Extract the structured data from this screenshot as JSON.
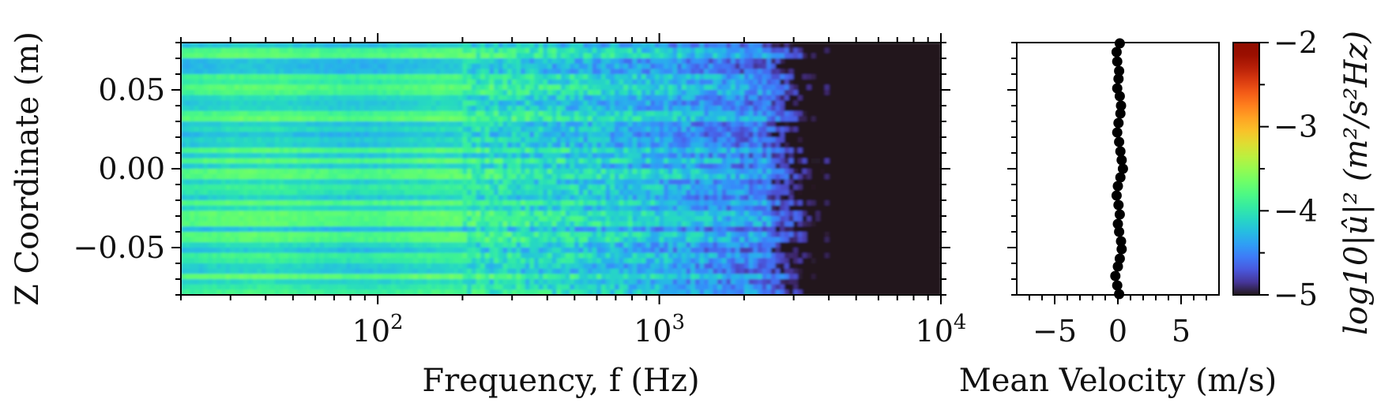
{
  "chart_data": [
    {
      "type": "heatmap",
      "xlabel": "Frequency, f (Hz)",
      "ylabel": "Z Coordinate (m)",
      "xscale": "log",
      "xlim": [
        20,
        10000
      ],
      "ylim": [
        -0.08,
        0.08
      ],
      "x_ticks": [
        {
          "value": 100,
          "base": "10",
          "exp": "2"
        },
        {
          "value": 1000,
          "base": "10",
          "exp": "3"
        },
        {
          "value": 10000,
          "base": "10",
          "exp": "4"
        }
      ],
      "y_ticks": [
        {
          "value": 0.05,
          "label": "0.05"
        },
        {
          "value": 0.0,
          "label": "0.00"
        },
        {
          "value": -0.05,
          "label": "−0.05"
        }
      ],
      "colormap": "turbo",
      "description_levels": {
        "low_frequency_level": -4.0,
        "mid_frequency_level": -4.3,
        "high_frequency_level": -5.0,
        "cutoff_frequency_hz": 3800
      }
    },
    {
      "type": "scatter",
      "xlabel": "Mean Velocity (m/s)",
      "xlim": [
        -8,
        8
      ],
      "ylim": [
        -0.08,
        0.08
      ],
      "x_ticks": [
        {
          "value": -5,
          "label": "−5"
        },
        {
          "value": 0,
          "label": "0"
        },
        {
          "value": 5,
          "label": "5"
        }
      ],
      "points": [
        {
          "x": 0.15,
          "y": 0.0795
        },
        {
          "x": -0.1,
          "y": 0.074
        },
        {
          "x": -0.05,
          "y": 0.068
        },
        {
          "x": 0.1,
          "y": 0.062
        },
        {
          "x": 0.05,
          "y": 0.057
        },
        {
          "x": -0.05,
          "y": 0.051
        },
        {
          "x": 0.15,
          "y": 0.046
        },
        {
          "x": 0.25,
          "y": 0.04
        },
        {
          "x": 0.2,
          "y": 0.035
        },
        {
          "x": 0.05,
          "y": 0.029
        },
        {
          "x": -0.05,
          "y": 0.023
        },
        {
          "x": 0.1,
          "y": 0.017
        },
        {
          "x": 0.2,
          "y": 0.011
        },
        {
          "x": 0.3,
          "y": 0.0055
        },
        {
          "x": 0.4,
          "y": 0.0
        },
        {
          "x": 0.2,
          "y": -0.0055
        },
        {
          "x": 0.0,
          "y": -0.011
        },
        {
          "x": -0.1,
          "y": -0.017
        },
        {
          "x": 0.05,
          "y": -0.023
        },
        {
          "x": 0.15,
          "y": -0.029
        },
        {
          "x": 0.0,
          "y": -0.035
        },
        {
          "x": 0.1,
          "y": -0.04
        },
        {
          "x": 0.25,
          "y": -0.046
        },
        {
          "x": 0.3,
          "y": -0.051
        },
        {
          "x": 0.15,
          "y": -0.057
        },
        {
          "x": 0.0,
          "y": -0.062
        },
        {
          "x": -0.2,
          "y": -0.068
        },
        {
          "x": -0.05,
          "y": -0.074
        },
        {
          "x": 0.1,
          "y": -0.0795
        }
      ]
    }
  ],
  "colorbar": {
    "label": "log10|û|² (m²/s²Hz)",
    "range": [
      -5,
      -2
    ],
    "ticks": [
      {
        "value": -2,
        "label": "−2"
      },
      {
        "value": -3,
        "label": "−3"
      },
      {
        "value": -4,
        "label": "−4"
      },
      {
        "value": -5,
        "label": "−5"
      }
    ],
    "colormap": "turbo"
  }
}
